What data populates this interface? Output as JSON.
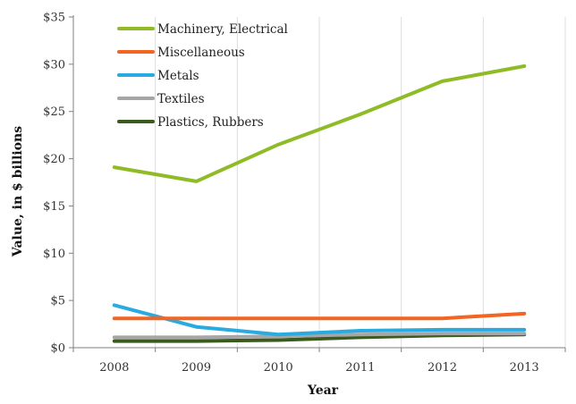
{
  "chart_data": {
    "type": "line",
    "title": "",
    "xlabel": "Year",
    "ylabel": "Value, in $ billions",
    "x": [
      "2008",
      "2009",
      "2010",
      "2011",
      "2012",
      "2013"
    ],
    "ylim": [
      0,
      35
    ],
    "yticks": [
      {
        "value": 0,
        "label": "$0"
      },
      {
        "value": 5,
        "label": "$5"
      },
      {
        "value": 10,
        "label": "$10"
      },
      {
        "value": 15,
        "label": "$15"
      },
      {
        "value": 20,
        "label": "$20"
      },
      {
        "value": 25,
        "label": "$25"
      },
      {
        "value": 30,
        "label": "$30"
      },
      {
        "value": 35,
        "label": "$35"
      }
    ],
    "grid": "vertical",
    "legend_position": "top-left",
    "series": [
      {
        "name": "Machinery, Electrical",
        "color": "#8fbc26",
        "values": [
          19.1,
          17.6,
          21.5,
          24.7,
          28.2,
          29.8
        ]
      },
      {
        "name": "Miscellaneous",
        "color": "#f26522",
        "values": [
          3.1,
          3.1,
          3.1,
          3.1,
          3.1,
          3.6
        ]
      },
      {
        "name": "Metals",
        "color": "#29abe2",
        "values": [
          4.5,
          2.2,
          1.4,
          1.8,
          1.9,
          1.9
        ]
      },
      {
        "name": "Textiles",
        "color": "#a6a6a6",
        "values": [
          1.1,
          1.1,
          1.2,
          1.4,
          1.5,
          1.5
        ]
      },
      {
        "name": "Plastics, Rubbers",
        "color": "#3b5a1e",
        "values": [
          0.7,
          0.7,
          0.8,
          1.1,
          1.3,
          1.4
        ]
      }
    ]
  }
}
